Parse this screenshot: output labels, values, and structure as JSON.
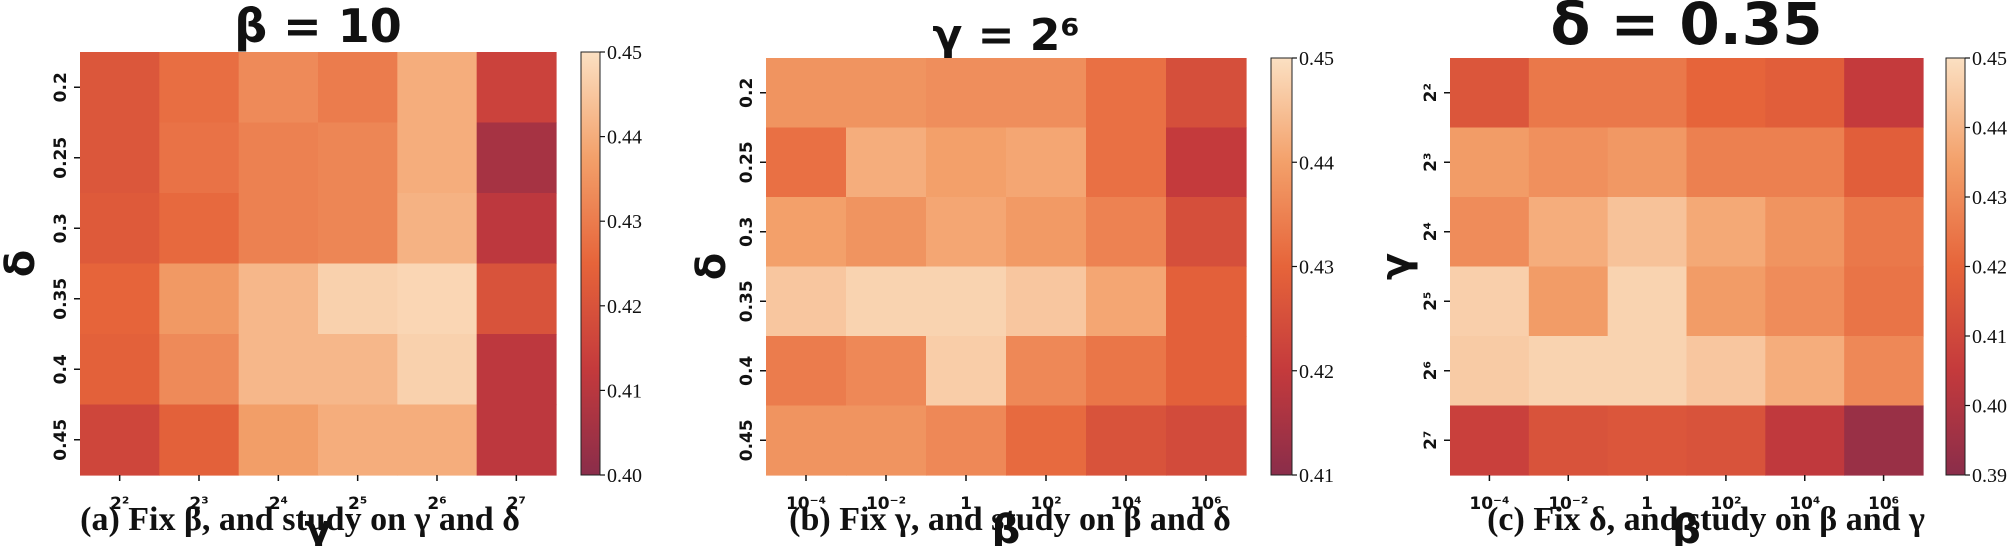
{
  "figure": {
    "panels": [
      {
        "id": "a",
        "title": "β = 10",
        "caption": "(a) Fix β, and study on γ and δ"
      },
      {
        "id": "b",
        "title": "γ = 2⁶",
        "caption": "(b) Fix γ, and study on β and δ"
      },
      {
        "id": "c",
        "title": "δ = 0.35",
        "caption": "(c) Fix δ, and study on β and γ"
      }
    ]
  },
  "chart_data": [
    {
      "type": "heatmap",
      "title": "β = 10",
      "xlabel": "γ",
      "ylabel": "δ",
      "x_categories": [
        "2²",
        "2³",
        "2⁴",
        "2⁵",
        "2⁶",
        "2⁷"
      ],
      "y_categories": [
        "0.2",
        "0.25",
        "0.3",
        "0.35",
        "0.4",
        "0.45"
      ],
      "values": [
        [
          0.421,
          0.427,
          0.433,
          0.43,
          0.44,
          0.415
        ],
        [
          0.421,
          0.428,
          0.431,
          0.432,
          0.44,
          0.406
        ],
        [
          0.422,
          0.426,
          0.431,
          0.432,
          0.441,
          0.411
        ],
        [
          0.425,
          0.436,
          0.442,
          0.447,
          0.448,
          0.42
        ],
        [
          0.424,
          0.433,
          0.442,
          0.442,
          0.447,
          0.411
        ],
        [
          0.416,
          0.424,
          0.437,
          0.44,
          0.44,
          0.411
        ]
      ],
      "colorbar": {
        "min": 0.4,
        "max": 0.45,
        "ticks": [
          "0.40",
          "0.41",
          "0.42",
          "0.43",
          "0.44",
          "0.45"
        ]
      }
    },
    {
      "type": "heatmap",
      "title": "γ = 2⁶",
      "xlabel": "β",
      "ylabel": "δ",
      "x_categories": [
        "10⁻⁴",
        "10⁻²",
        "1",
        "10²",
        "10⁴",
        "10⁶"
      ],
      "y_categories": [
        "0.2",
        "0.25",
        "0.3",
        "0.35",
        "0.4",
        "0.45"
      ],
      "values": [
        [
          0.438,
          0.438,
          0.437,
          0.437,
          0.432,
          0.425
        ],
        [
          0.432,
          0.442,
          0.44,
          0.441,
          0.432,
          0.42
        ],
        [
          0.44,
          0.438,
          0.441,
          0.439,
          0.435,
          0.425
        ],
        [
          0.446,
          0.448,
          0.448,
          0.446,
          0.441,
          0.429
        ],
        [
          0.434,
          0.436,
          0.447,
          0.436,
          0.433,
          0.429
        ],
        [
          0.438,
          0.438,
          0.436,
          0.431,
          0.426,
          0.424
        ]
      ],
      "colorbar": {
        "min": 0.41,
        "max": 0.45,
        "ticks": [
          "0.41",
          "0.42",
          "0.43",
          "0.44",
          "0.45"
        ]
      }
    },
    {
      "type": "heatmap",
      "title": "δ = 0.35",
      "xlabel": "β",
      "ylabel": "γ",
      "x_categories": [
        "10⁻⁴",
        "10⁻²",
        "1",
        "10²",
        "10⁴",
        "10⁶"
      ],
      "y_categories": [
        "2²",
        "2³",
        "2⁴",
        "2⁵",
        "2⁶",
        "2⁷"
      ],
      "values": [
        [
          0.415,
          0.425,
          0.425,
          0.42,
          0.418,
          0.405
        ],
        [
          0.434,
          0.431,
          0.433,
          0.427,
          0.427,
          0.418
        ],
        [
          0.43,
          0.438,
          0.443,
          0.437,
          0.432,
          0.425
        ],
        [
          0.446,
          0.434,
          0.447,
          0.434,
          0.43,
          0.424
        ],
        [
          0.445,
          0.447,
          0.447,
          0.444,
          0.438,
          0.429
        ],
        [
          0.407,
          0.414,
          0.415,
          0.414,
          0.404,
          0.394
        ]
      ],
      "colorbar": {
        "min": 0.39,
        "max": 0.45,
        "ticks": [
          "0.39",
          "0.40",
          "0.41",
          "0.42",
          "0.43",
          "0.44",
          "0.45"
        ]
      }
    }
  ]
}
